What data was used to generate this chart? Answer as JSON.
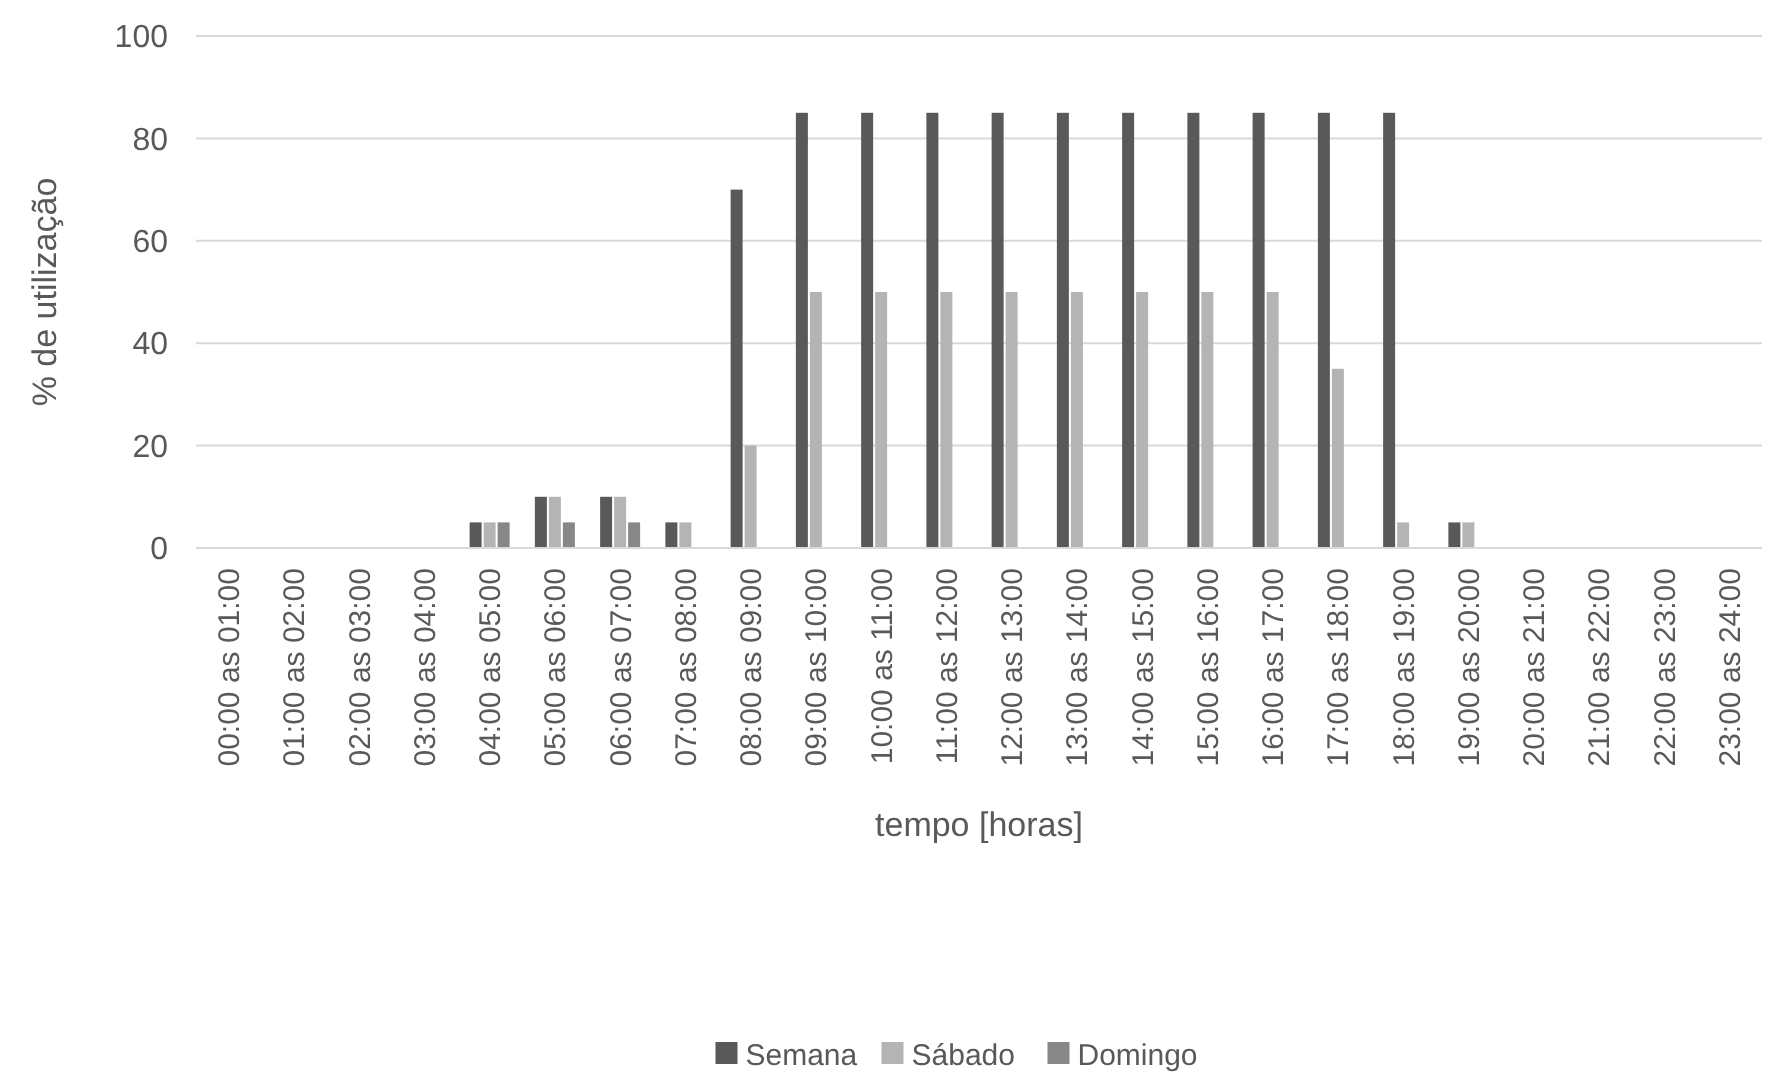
{
  "chart_data": {
    "type": "bar",
    "xlabel": "tempo [horas]",
    "ylabel": "% de utilização",
    "categories": [
      "00:00 as 01:00",
      "01:00 as 02:00",
      "02:00 as 03:00",
      "03:00 as 04:00",
      "04:00 as 05:00",
      "05:00 as 06:00",
      "06:00 as 07:00",
      "07:00 as 08:00",
      "08:00 as 09:00",
      "09:00 as 10:00",
      "10:00 as 11:00",
      "11:00 as 12:00",
      "12:00 as 13:00",
      "13:00 as 14:00",
      "14:00 as 15:00",
      "15:00 as 16:00",
      "16:00 as 17:00",
      "17:00 as 18:00",
      "18:00 as 19:00",
      "19:00 as 20:00",
      "20:00 as 21:00",
      "21:00 as 22:00",
      "22:00 as 23:00",
      "23:00 as 24:00"
    ],
    "series": [
      {
        "name": "Semana",
        "color": "#595959",
        "values": [
          0,
          0,
          0,
          0,
          5,
          10,
          10,
          5,
          70,
          85,
          85,
          85,
          85,
          85,
          85,
          85,
          85,
          85,
          85,
          5,
          0,
          0,
          0,
          0
        ]
      },
      {
        "name": "Sábado",
        "color": "#b4b4b4",
        "values": [
          0,
          0,
          0,
          0,
          5,
          10,
          10,
          5,
          20,
          50,
          50,
          50,
          50,
          50,
          50,
          50,
          50,
          35,
          5,
          5,
          0,
          0,
          0,
          0
        ]
      },
      {
        "name": "Domingo",
        "color": "#878787",
        "values": [
          0,
          0,
          0,
          0,
          5,
          5,
          5,
          0,
          0,
          0,
          0,
          0,
          0,
          0,
          0,
          0,
          0,
          0,
          0,
          0,
          0,
          0,
          0,
          0
        ]
      }
    ],
    "ylim": [
      0,
      100
    ],
    "yticks": [
      0,
      20,
      40,
      60,
      80,
      100
    ],
    "grid": "y",
    "legend": "bottom"
  }
}
